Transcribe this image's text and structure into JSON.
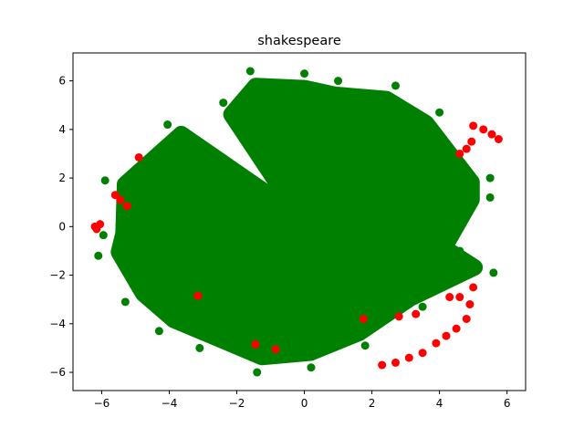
{
  "chart_data": {
    "type": "scatter",
    "title": "shakespeare",
    "xlabel": "",
    "ylabel": "",
    "xlim": [
      -6.85,
      6.55
    ],
    "ylim": [
      -6.75,
      7.15
    ],
    "xticks": [
      -6,
      -4,
      -2,
      0,
      2,
      4,
      6
    ],
    "yticks": [
      -6,
      -4,
      -2,
      0,
      2,
      4,
      6
    ],
    "xtick_labels": [
      "−6",
      "−4",
      "−2",
      "0",
      "2",
      "4",
      "6"
    ],
    "ytick_labels": [
      "−6",
      "−4",
      "−2",
      "0",
      "2",
      "4",
      "6"
    ],
    "grid": false,
    "legend": "none",
    "series": [
      {
        "color": "#ff0000",
        "points": [
          [
            -6.2,
            0.0
          ],
          [
            -6.15,
            -0.1
          ],
          [
            -6.05,
            0.1
          ],
          [
            -5.6,
            1.3
          ],
          [
            -5.45,
            1.1
          ],
          [
            -5.25,
            0.85
          ],
          [
            -4.9,
            2.85
          ],
          [
            -3.15,
            -2.85
          ],
          [
            -1.45,
            -4.85
          ],
          [
            -0.85,
            -5.05
          ],
          [
            1.75,
            -3.8
          ],
          [
            2.3,
            -5.7
          ],
          [
            2.7,
            -5.6
          ],
          [
            3.1,
            -5.4
          ],
          [
            3.5,
            -5.2
          ],
          [
            3.9,
            -4.8
          ],
          [
            4.2,
            -4.5
          ],
          [
            4.5,
            -4.2
          ],
          [
            4.8,
            -3.8
          ],
          [
            4.9,
            -3.2
          ],
          [
            4.6,
            -2.9
          ],
          [
            4.3,
            -2.9
          ],
          [
            5.0,
            -2.5
          ],
          [
            4.6,
            3.0
          ],
          [
            4.8,
            3.2
          ],
          [
            4.95,
            3.5
          ],
          [
            5.0,
            4.15
          ],
          [
            5.3,
            4.0
          ],
          [
            5.55,
            3.8
          ],
          [
            5.75,
            3.6
          ],
          [
            2.8,
            -3.7
          ],
          [
            3.3,
            -3.6
          ]
        ]
      },
      {
        "color": "#008000",
        "points": [
          [
            -0.2,
            0.5
          ],
          [
            0.0,
            6.3
          ],
          [
            -1.6,
            6.4
          ],
          [
            2.7,
            5.8
          ],
          [
            -4.05,
            4.2
          ],
          [
            -5.9,
            1.9
          ],
          [
            -5.95,
            -0.35
          ],
          [
            -6.1,
            -1.2
          ],
          [
            -5.3,
            -3.1
          ],
          [
            -4.3,
            -4.3
          ],
          [
            -3.1,
            -5.0
          ],
          [
            -1.4,
            -6.0
          ],
          [
            0.2,
            -5.8
          ],
          [
            1.8,
            -4.9
          ],
          [
            3.5,
            -3.3
          ],
          [
            4.6,
            -1.0
          ],
          [
            5.6,
            -1.9
          ],
          [
            5.5,
            1.2
          ],
          [
            5.5,
            2.0
          ],
          [
            4.0,
            4.7
          ],
          [
            -2.4,
            5.1
          ],
          [
            1.0,
            6.0
          ]
        ]
      }
    ]
  }
}
